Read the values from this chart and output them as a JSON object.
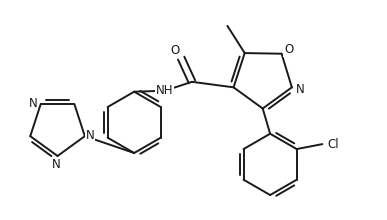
{
  "bg_color": "#ffffff",
  "line_color": "#1a1a1a",
  "lw": 1.4,
  "fs": 8.5,
  "figsize": [
    3.87,
    2.2
  ],
  "dpi": 100,
  "xlim": [
    0,
    7.8
  ],
  "ylim": [
    0,
    4.4
  ]
}
